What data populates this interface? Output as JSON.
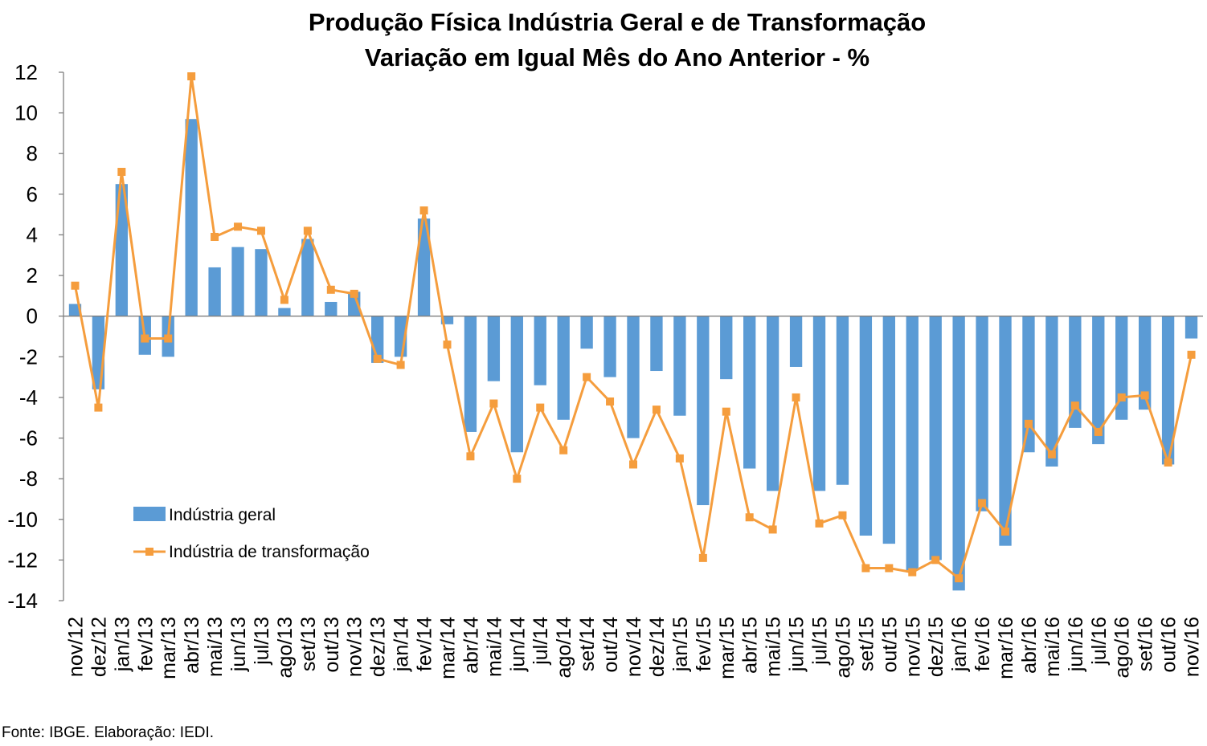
{
  "chart_data": {
    "type": "bar",
    "title": "Produção Física Indústria Geral e de Transformação",
    "subtitle": "Variação em Igual Mês do Ano Anterior - %",
    "ylim": [
      -14,
      12
    ],
    "yticks": [
      "12",
      "10",
      "8",
      "6",
      "4",
      "2",
      "0",
      "-2",
      "-4",
      "-6",
      "-8",
      "-10",
      "-12",
      "-14"
    ],
    "ytick_values": [
      12,
      10,
      8,
      6,
      4,
      2,
      0,
      -2,
      -4,
      -6,
      -8,
      -10,
      -12,
      -14
    ],
    "grid": false,
    "legend_position": "bottom-left",
    "categories": [
      "nov/12",
      "dez/12",
      "jan/13",
      "fev/13",
      "mar/13",
      "abr/13",
      "mai/13",
      "jun/13",
      "jul/13",
      "ago/13",
      "set/13",
      "out/13",
      "nov/13",
      "dez/13",
      "jan/14",
      "fev/14",
      "mar/14",
      "abr/14",
      "mai/14",
      "jun/14",
      "jul/14",
      "ago/14",
      "set/14",
      "out/14",
      "nov/14",
      "dez/14",
      "jan/15",
      "fev/15",
      "mar/15",
      "abr/15",
      "mai/15",
      "jun/15",
      "jul/15",
      "ago/15",
      "set/15",
      "out/15",
      "nov/15",
      "dez/15",
      "jan/16",
      "fev/16",
      "mar/16",
      "abr/16",
      "mai/16",
      "jun/16",
      "jul/16",
      "ago/16",
      "set/16",
      "out/16",
      "nov/16"
    ],
    "series": [
      {
        "name": "Indústria geral",
        "type": "bar",
        "color": "#5B9BD5",
        "values": [
          0.6,
          -3.6,
          6.5,
          -1.9,
          -2.0,
          9.7,
          2.4,
          3.4,
          3.3,
          0.4,
          3.8,
          0.7,
          1.2,
          -2.3,
          -2.0,
          4.8,
          -0.4,
          -5.7,
          -3.2,
          -6.7,
          -3.4,
          -5.1,
          -1.6,
          -3.0,
          -6.0,
          -2.7,
          -4.9,
          -9.3,
          -3.1,
          -7.5,
          -8.6,
          -2.5,
          -8.6,
          -8.3,
          -10.8,
          -11.2,
          -12.5,
          -12.0,
          -13.5,
          -9.6,
          -11.3,
          -6.7,
          -7.4,
          -5.5,
          -6.3,
          -5.1,
          -4.6,
          -7.3,
          -1.1
        ]
      },
      {
        "name": "Indústria de transformação",
        "type": "line",
        "color": "#F59D3D",
        "values": [
          1.5,
          -4.5,
          7.1,
          -1.1,
          -1.1,
          11.8,
          3.9,
          4.4,
          4.2,
          0.8,
          4.2,
          1.3,
          1.1,
          -2.1,
          -2.4,
          5.2,
          -1.4,
          -6.9,
          -4.3,
          -8.0,
          -4.5,
          -6.6,
          -3.0,
          -4.2,
          -7.3,
          -4.6,
          -7.0,
          -11.9,
          -4.7,
          -9.9,
          -10.5,
          -4.0,
          -10.2,
          -9.8,
          -12.4,
          -12.4,
          -12.6,
          -12.0,
          -12.9,
          -9.2,
          -10.6,
          -5.3,
          -6.8,
          -4.4,
          -5.7,
          -4.0,
          -3.9,
          -7.2,
          -1.9
        ]
      }
    ]
  },
  "source_note": "Fonte: IBGE. Elaboração: IEDI."
}
